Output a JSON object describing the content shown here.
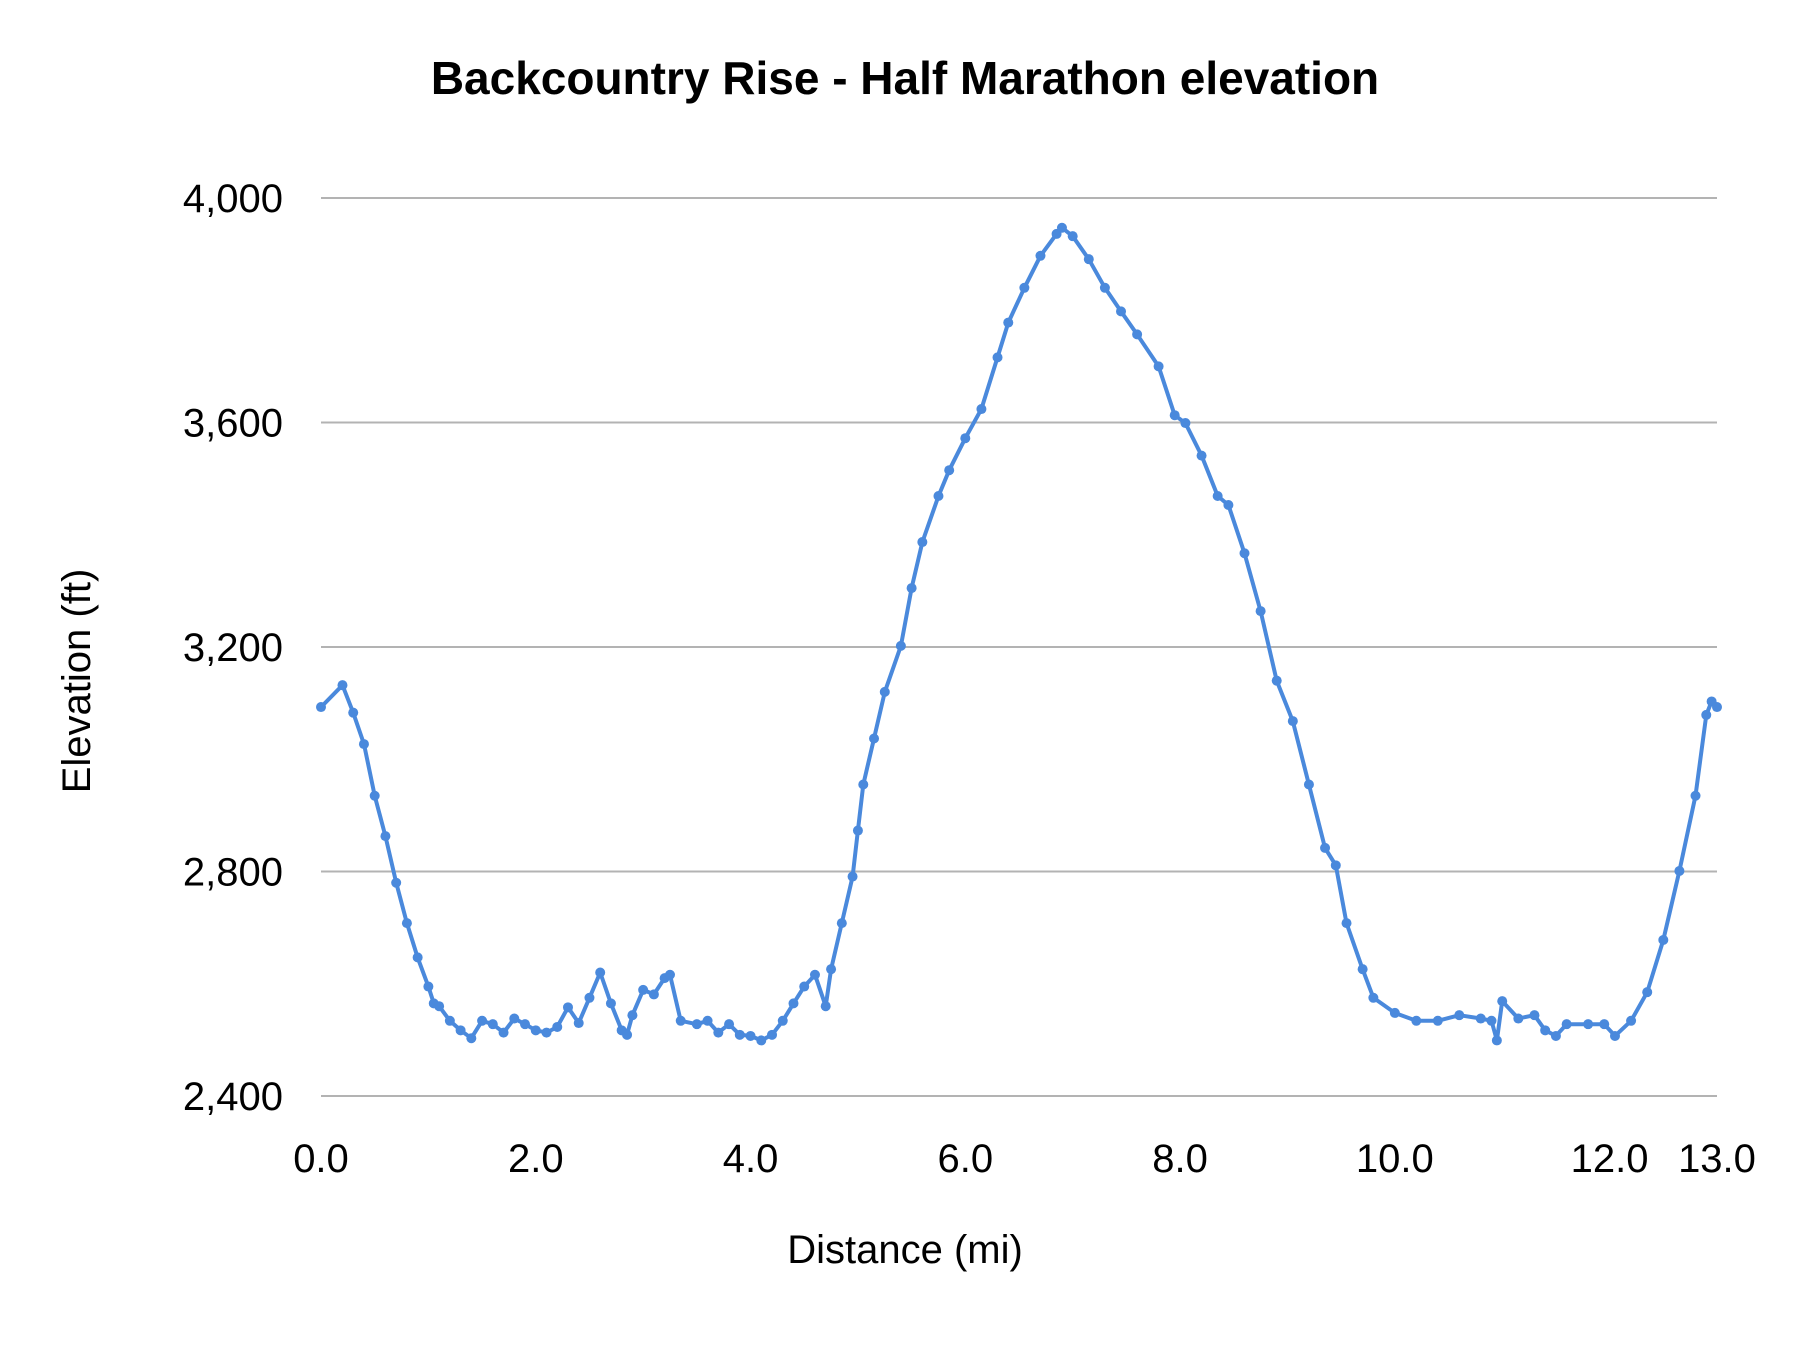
{
  "chart_data": {
    "type": "line",
    "title": "Backcountry Rise - Half Marathon elevation",
    "xlabel": "Distance (mi)",
    "ylabel": "Elevation (ft)",
    "xlim": [
      0,
      13
    ],
    "ylim": [
      2400,
      4000
    ],
    "x_ticks": [
      "0.0",
      "2.0",
      "4.0",
      "6.0",
      "8.0",
      "10.0",
      "12.0",
      "13.0"
    ],
    "x_tick_values": [
      0,
      2,
      4,
      6,
      8,
      10,
      12,
      13
    ],
    "y_ticks": [
      "2,400",
      "2,800",
      "3,200",
      "3,600",
      "4,000"
    ],
    "y_tick_values": [
      2400,
      2800,
      3200,
      3600,
      4000
    ],
    "grid": true,
    "legend": "none",
    "markers": true,
    "series": [
      {
        "color": "#4a89dc",
        "x": [
          0.0,
          0.2,
          0.3,
          0.4,
          0.5,
          0.6,
          0.7,
          0.8,
          0.9,
          1.0,
          1.05,
          1.1,
          1.2,
          1.3,
          1.4,
          1.5,
          1.6,
          1.7,
          1.8,
          1.9,
          2.0,
          2.1,
          2.2,
          2.3,
          2.4,
          2.5,
          2.6,
          2.7,
          2.8,
          2.85,
          2.9,
          3.0,
          3.1,
          3.2,
          3.25,
          3.35,
          3.5,
          3.6,
          3.7,
          3.8,
          3.9,
          4.0,
          4.1,
          4.2,
          4.3,
          4.4,
          4.5,
          4.6,
          4.7,
          4.75,
          4.85,
          4.95,
          5.0,
          5.05,
          5.15,
          5.25,
          5.4,
          5.5,
          5.6,
          5.75,
          5.85,
          6.0,
          6.15,
          6.3,
          6.4,
          6.55,
          6.7,
          6.85,
          6.9,
          7.0,
          7.15,
          7.3,
          7.45,
          7.6,
          7.8,
          7.95,
          8.05,
          8.2,
          8.35,
          8.45,
          8.6,
          8.75,
          8.9,
          9.05,
          9.2,
          9.35,
          9.45,
          9.55,
          9.7,
          9.8,
          10.0,
          10.2,
          10.4,
          10.6,
          10.8,
          10.9,
          10.95,
          11.0,
          11.15,
          11.3,
          11.4,
          11.5,
          11.6,
          11.8,
          11.95,
          12.05,
          12.2,
          12.35,
          12.5,
          12.65,
          12.8,
          12.9,
          12.95,
          13.0
        ],
        "y": [
          3093,
          3132,
          3083,
          3027,
          2935,
          2863,
          2780,
          2708,
          2647,
          2595,
          2565,
          2560,
          2534,
          2517,
          2503,
          2534,
          2528,
          2513,
          2538,
          2528,
          2517,
          2513,
          2523,
          2558,
          2530,
          2575,
          2620,
          2565,
          2517,
          2509,
          2544,
          2589,
          2581,
          2610,
          2616,
          2534,
          2528,
          2534,
          2513,
          2528,
          2509,
          2507,
          2499,
          2509,
          2534,
          2565,
          2595,
          2616,
          2560,
          2626,
          2708,
          2791,
          2873,
          2955,
          3037,
          3120,
          3202,
          3305,
          3387,
          3469,
          3515,
          3572,
          3624,
          3716,
          3778,
          3840,
          3897,
          3936,
          3947,
          3932,
          3891,
          3840,
          3798,
          3757,
          3700,
          3613,
          3599,
          3541,
          3469,
          3453,
          3367,
          3264,
          3140,
          3068,
          2955,
          2842,
          2811,
          2708,
          2626,
          2575,
          2548,
          2534,
          2534,
          2544,
          2538,
          2534,
          2499,
          2569,
          2538,
          2544,
          2517,
          2507,
          2528,
          2528,
          2528,
          2507,
          2534,
          2585,
          2678,
          2801,
          2935,
          3079,
          3103,
          3093
        ]
      }
    ]
  }
}
